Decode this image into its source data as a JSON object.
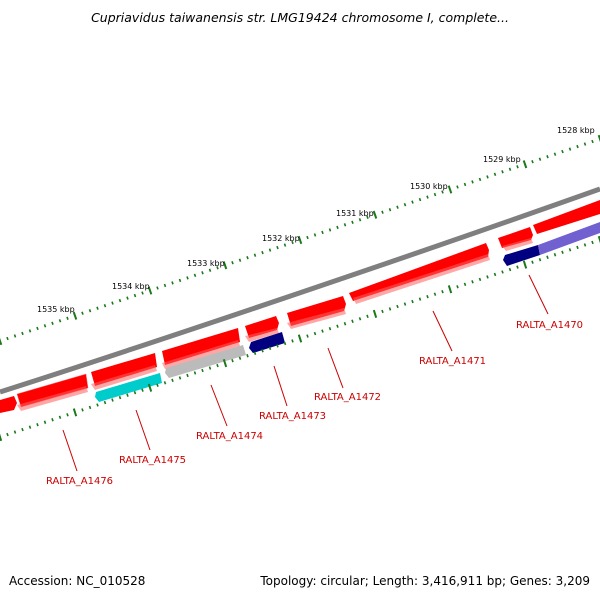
{
  "title": "Cupriavidus taiwanensis str. LMG19424 chromosome I, complete...",
  "footer": {
    "accession": "Accession: NC_010528",
    "info": "Topology: circular; Length: 3,416,911 bp; Genes: 3,209"
  },
  "scale": {
    "labels": [
      "1528 kbp",
      "1529 kbp",
      "1530 kbp",
      "1531 kbp",
      "1532 kbp",
      "1533 kbp",
      "1534 kbp",
      "1535 kbp"
    ]
  },
  "genes": [
    {
      "name": "RALTA_A1470",
      "color": "navy/purple"
    },
    {
      "name": "RALTA_A1471",
      "color": "red"
    },
    {
      "name": "RALTA_A1472",
      "color": "red"
    },
    {
      "name": "RALTA_A1473",
      "color": "navy"
    },
    {
      "name": "RALTA_A1474",
      "color": "grey"
    },
    {
      "name": "RALTA_A1475",
      "color": "cyan"
    },
    {
      "name": "RALTA_A1476",
      "color": "red"
    }
  ],
  "colors": {
    "backbone": "#7f7f7f",
    "forward_gene": "#ff0000",
    "tick": "#1a7a1a",
    "label": "#cc0000",
    "navy": "#000080",
    "cyan": "#00c8c8",
    "grey": "#bbbbbb",
    "purple": "#7060d0"
  }
}
